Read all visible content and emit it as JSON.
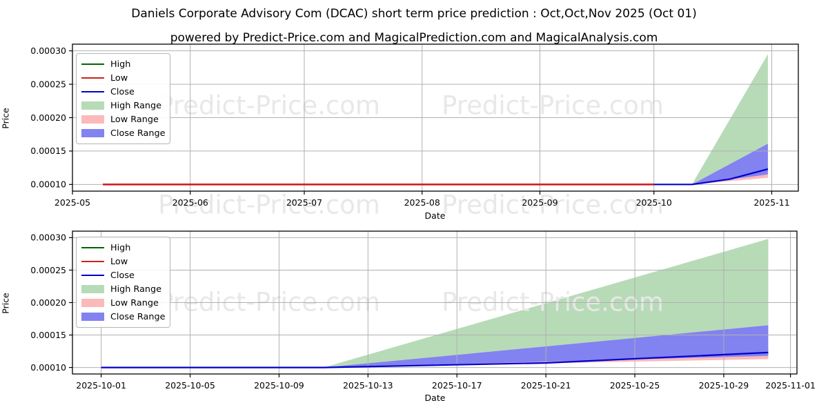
{
  "figure": {
    "title": "Daniels Corporate Advisory Com (DCAC) short term price prediction : Oct,Oct,Nov 2025 (Oct 01)",
    "subtitle": "powered by Predict-Price.com and MagicalPrediction.com and MagicalAnalysis.com",
    "watermark": "Predict-Price.com",
    "background": "#ffffff"
  },
  "colors": {
    "high_line": "#006400",
    "low_line": "#cc2020",
    "close_line": "#0000cd",
    "high_range_fill": "#b7dbb7",
    "low_range_fill": "#fcb9b9",
    "close_range_fill": "#8282f0",
    "grid": "#b0b0b0",
    "axis": "#000000",
    "tick_text": "#000000",
    "watermark_color": "#e8e8e8"
  },
  "legend": {
    "items": [
      {
        "label": "High",
        "swatch": "line",
        "colorKey": "high_line"
      },
      {
        "label": "Low",
        "swatch": "line",
        "colorKey": "low_line"
      },
      {
        "label": "Close",
        "swatch": "line",
        "colorKey": "close_line"
      },
      {
        "label": "High Range",
        "swatch": "fill",
        "colorKey": "high_range_fill"
      },
      {
        "label": "Low Range",
        "swatch": "fill",
        "colorKey": "low_range_fill"
      },
      {
        "label": "Close Range",
        "swatch": "fill",
        "colorKey": "close_range_fill"
      }
    ]
  },
  "chart_data": [
    {
      "type": "line",
      "name": "monthly-overview",
      "xlabel": "Date",
      "ylabel": "Price",
      "grid": true,
      "legend_position": "upper-left",
      "xlim": [
        "2025-05-01T00:00:00",
        "2025-11-08T00:00:00"
      ],
      "ylim": [
        9e-05,
        0.00031
      ],
      "x_ticks": [
        {
          "label": "2025-05",
          "date": "2025-05-01"
        },
        {
          "label": "2025-06",
          "date": "2025-06-01"
        },
        {
          "label": "2025-07",
          "date": "2025-07-01"
        },
        {
          "label": "2025-08",
          "date": "2025-08-01"
        },
        {
          "label": "2025-09",
          "date": "2025-09-01"
        },
        {
          "label": "2025-10",
          "date": "2025-10-01"
        },
        {
          "label": "2025-11",
          "date": "2025-11-01"
        }
      ],
      "y_ticks": [
        {
          "label": "0.00010",
          "value": 0.0001
        },
        {
          "label": "0.00015",
          "value": 0.00015
        },
        {
          "label": "0.00020",
          "value": 0.0002
        },
        {
          "label": "0.00025",
          "value": 0.00025
        },
        {
          "label": "0.00030",
          "value": 0.0003
        }
      ],
      "bands": [
        {
          "name": "high-range-area",
          "colorKey": "high_range_fill",
          "points": [
            [
              "2025-10-11",
              0.0001
            ],
            [
              "2025-10-31",
              0.000295
            ],
            [
              "2025-10-31",
              0.000161
            ]
          ]
        },
        {
          "name": "low-range-area",
          "colorKey": "low_range_fill",
          "points": [
            [
              "2025-10-11",
              0.0001
            ],
            [
              "2025-10-31",
              0.000126
            ],
            [
              "2025-10-31",
              0.00011
            ]
          ]
        },
        {
          "name": "close-range-area",
          "colorKey": "close_range_fill",
          "points": [
            [
              "2025-10-11",
              0.0001
            ],
            [
              "2025-10-31",
              0.000161
            ],
            [
              "2025-10-31",
              0.000115
            ]
          ]
        }
      ],
      "lines": [
        {
          "name": "low-line",
          "colorKey": "low_line",
          "width": 2.7,
          "points": [
            [
              "2025-05-09",
              0.0001
            ],
            [
              "2025-10-01",
              0.0001
            ]
          ]
        },
        {
          "name": "close-line",
          "colorKey": "close_line",
          "width": 2.2,
          "points": [
            [
              "2025-10-01",
              0.0001
            ],
            [
              "2025-10-11",
              0.0001
            ],
            [
              "2025-10-21",
              0.000108
            ],
            [
              "2025-10-31",
              0.000123
            ]
          ]
        }
      ]
    },
    {
      "type": "line",
      "name": "october-detail",
      "xlabel": "Date",
      "ylabel": "Price",
      "grid": true,
      "legend_position": "upper-left",
      "xlim": [
        "2025-09-29T17:00:00",
        "2025-11-01T07:00:00"
      ],
      "ylim": [
        9e-05,
        0.00031
      ],
      "x_ticks": [
        {
          "label": "2025-10-01",
          "date": "2025-10-01"
        },
        {
          "label": "2025-10-05",
          "date": "2025-10-05"
        },
        {
          "label": "2025-10-09",
          "date": "2025-10-09"
        },
        {
          "label": "2025-10-13",
          "date": "2025-10-13"
        },
        {
          "label": "2025-10-17",
          "date": "2025-10-17"
        },
        {
          "label": "2025-10-21",
          "date": "2025-10-21"
        },
        {
          "label": "2025-10-25",
          "date": "2025-10-25"
        },
        {
          "label": "2025-10-29",
          "date": "2025-10-29"
        },
        {
          "label": "2025-11-01",
          "date": "2025-11-01"
        }
      ],
      "y_ticks": [
        {
          "label": "0.00010",
          "value": 0.0001
        },
        {
          "label": "0.00015",
          "value": 0.00015
        },
        {
          "label": "0.00020",
          "value": 0.0002
        },
        {
          "label": "0.00025",
          "value": 0.00025
        },
        {
          "label": "0.00030",
          "value": 0.0003
        }
      ],
      "bands": [
        {
          "name": "high-range-area",
          "colorKey": "high_range_fill",
          "points": [
            [
              "2025-10-11",
              0.0001
            ],
            [
              "2025-10-31",
              0.000298
            ],
            [
              "2025-10-31",
              0.000165
            ]
          ]
        },
        {
          "name": "low-range-area",
          "colorKey": "low_range_fill",
          "points": [
            [
              "2025-10-11",
              0.0001
            ],
            [
              "2025-10-31",
              0.00013
            ],
            [
              "2025-10-31",
              0.000113
            ]
          ]
        },
        {
          "name": "close-range-area",
          "colorKey": "close_range_fill",
          "points": [
            [
              "2025-10-11",
              0.0001
            ],
            [
              "2025-10-31",
              0.000165
            ],
            [
              "2025-10-31",
              0.000118
            ]
          ]
        }
      ],
      "lines": [
        {
          "name": "close-line",
          "colorKey": "close_line",
          "width": 2.2,
          "points": [
            [
              "2025-10-01",
              0.0001
            ],
            [
              "2025-10-11",
              0.0001
            ],
            [
              "2025-10-21",
              0.000107
            ],
            [
              "2025-10-31",
              0.000123
            ]
          ]
        }
      ]
    }
  ]
}
